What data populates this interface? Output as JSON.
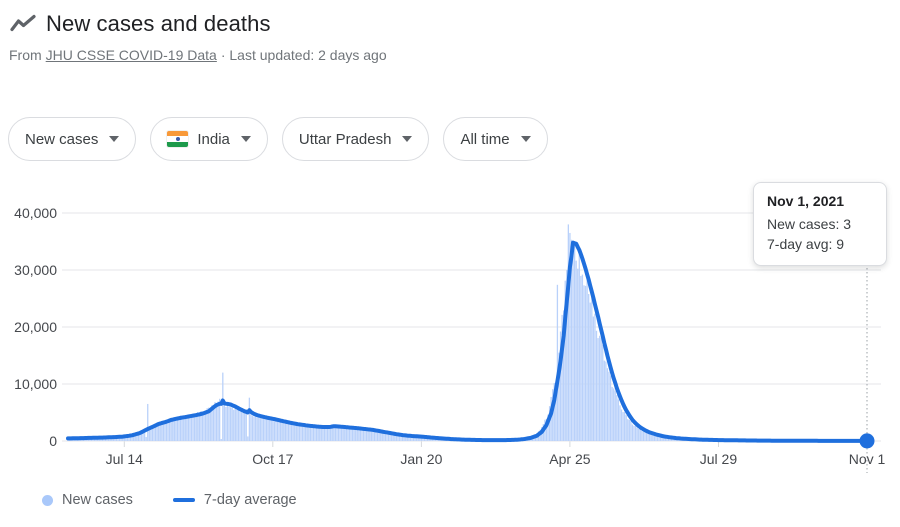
{
  "header": {
    "title": "New cases and deaths",
    "source_prefix": "From",
    "source_link": "JHU CSSE COVID-19 Data",
    "updated_suffix": "· Last updated: 2 days ago"
  },
  "filters": [
    {
      "label": "New cases"
    },
    {
      "label": "India",
      "flag": "india-flag"
    },
    {
      "label": "Uttar Pradesh"
    },
    {
      "label": "All time"
    }
  ],
  "tooltip": {
    "date": "Nov 1, 2021",
    "new_cases_label": "New cases: 3",
    "avg_label": "7-day avg: 9"
  },
  "colors": {
    "line_blue": "#1f6fdd",
    "area_blue": "#b9d1fa",
    "legend_dot_blue": "#a9c8fa",
    "grid": "#e4e6e9",
    "tick": "#d6d9dc",
    "guide": "#9aa0a6",
    "axis_text": "#45484d",
    "muted_text": "#70757a",
    "title_text": "#202124"
  },
  "chart_data": {
    "type": "area",
    "title": "New cases — Uttar Pradesh, India (All time)",
    "grid": true,
    "legend_position": "bottom",
    "legend": [
      {
        "label": "New cases",
        "swatch": "dot"
      },
      {
        "label": "7-day average",
        "swatch": "line"
      }
    ],
    "x_axis": {
      "start_date": "2020-06-08",
      "end_date": "2021-11-01",
      "total_days": 511,
      "ticks": [
        {
          "label": "Jul 14",
          "day": 36
        },
        {
          "label": "Oct 17",
          "day": 131
        },
        {
          "label": "Jan 20",
          "day": 226
        },
        {
          "label": "Apr 25",
          "day": 321
        },
        {
          "label": "Jul 29",
          "day": 416
        },
        {
          "label": "Nov 1",
          "day": 511
        }
      ]
    },
    "y_axis": {
      "ticks": [
        {
          "label": "0",
          "value": 0
        },
        {
          "label": "10,000",
          "value": 10000
        },
        {
          "label": "20,000",
          "value": 20000
        },
        {
          "label": "30,000",
          "value": 30000
        },
        {
          "label": "40,000",
          "value": 40000
        }
      ],
      "range": [
        0,
        43000
      ]
    },
    "series": [
      {
        "name": "New cases",
        "type": "bar",
        "color_key": "area_blue",
        "render_hint": "daily bars track the 7-day average led by 2 days with slight noise, plus the anomaly spikes below",
        "anomaly_points": {
          "50": 700,
          "51": 6500,
          "98": 350,
          "99": 12000,
          "115": 800,
          "116": 7600,
          "312": 9500,
          "313": 27400,
          "314": 15500,
          "319": 30000,
          "320": 38000,
          "321": 36500,
          "322": 35300,
          "323": 34200,
          "510": 4,
          "511": 3
        }
      },
      {
        "name": "7-day average",
        "type": "line",
        "color_key": "line_blue",
        "points": [
          [
            0,
            450
          ],
          [
            8,
            500
          ],
          [
            16,
            560
          ],
          [
            24,
            620
          ],
          [
            31,
            700
          ],
          [
            36,
            800
          ],
          [
            41,
            1000
          ],
          [
            46,
            1400
          ],
          [
            51,
            2100
          ],
          [
            55,
            2600
          ],
          [
            58,
            3000
          ],
          [
            62,
            3300
          ],
          [
            66,
            3700
          ],
          [
            70,
            3950
          ],
          [
            74,
            4150
          ],
          [
            78,
            4350
          ],
          [
            82,
            4550
          ],
          [
            86,
            4800
          ],
          [
            90,
            5200
          ],
          [
            93,
            5900
          ],
          [
            95,
            6300
          ],
          [
            97,
            6550
          ],
          [
            98,
            6500
          ],
          [
            99,
            7100
          ],
          [
            100,
            6600
          ],
          [
            102,
            6500
          ],
          [
            104,
            6400
          ],
          [
            107,
            6050
          ],
          [
            110,
            5600
          ],
          [
            113,
            5200
          ],
          [
            115,
            5000
          ],
          [
            116,
            5400
          ],
          [
            117,
            5100
          ],
          [
            119,
            4750
          ],
          [
            122,
            4450
          ],
          [
            125,
            4250
          ],
          [
            128,
            4050
          ],
          [
            131,
            3900
          ],
          [
            135,
            3650
          ],
          [
            139,
            3400
          ],
          [
            143,
            3150
          ],
          [
            147,
            2950
          ],
          [
            151,
            2800
          ],
          [
            155,
            2650
          ],
          [
            159,
            2550
          ],
          [
            163,
            2450
          ],
          [
            167,
            2450
          ],
          [
            170,
            2600
          ],
          [
            173,
            2550
          ],
          [
            177,
            2450
          ],
          [
            181,
            2350
          ],
          [
            185,
            2250
          ],
          [
            190,
            2100
          ],
          [
            195,
            1950
          ],
          [
            200,
            1700
          ],
          [
            205,
            1450
          ],
          [
            210,
            1200
          ],
          [
            215,
            1000
          ],
          [
            220,
            880
          ],
          [
            226,
            780
          ],
          [
            232,
            620
          ],
          [
            238,
            480
          ],
          [
            245,
            340
          ],
          [
            252,
            250
          ],
          [
            259,
            190
          ],
          [
            266,
            160
          ],
          [
            273,
            150
          ],
          [
            280,
            160
          ],
          [
            287,
            210
          ],
          [
            292,
            350
          ],
          [
            296,
            550
          ],
          [
            300,
            950
          ],
          [
            303,
            1600
          ],
          [
            306,
            2800
          ],
          [
            309,
            4900
          ],
          [
            311,
            7200
          ],
          [
            313,
            10500
          ],
          [
            315,
            14000
          ],
          [
            317,
            18500
          ],
          [
            319,
            24500
          ],
          [
            321,
            30500
          ],
          [
            322,
            32500
          ],
          [
            323,
            34800
          ],
          [
            325,
            34600
          ],
          [
            327,
            33500
          ],
          [
            329,
            32000
          ],
          [
            331,
            30200
          ],
          [
            333,
            28300
          ],
          [
            335,
            26200
          ],
          [
            337,
            24000
          ],
          [
            339,
            21800
          ],
          [
            341,
            19500
          ],
          [
            343,
            17200
          ],
          [
            345,
            15000
          ],
          [
            347,
            12900
          ],
          [
            349,
            11000
          ],
          [
            351,
            9300
          ],
          [
            353,
            7800
          ],
          [
            355,
            6500
          ],
          [
            357,
            5400
          ],
          [
            359,
            4500
          ],
          [
            361,
            3700
          ],
          [
            363,
            3100
          ],
          [
            366,
            2400
          ],
          [
            369,
            1900
          ],
          [
            372,
            1500
          ],
          [
            376,
            1150
          ],
          [
            380,
            880
          ],
          [
            384,
            680
          ],
          [
            388,
            540
          ],
          [
            393,
            420
          ],
          [
            398,
            330
          ],
          [
            404,
            250
          ],
          [
            410,
            200
          ],
          [
            417,
            160
          ],
          [
            424,
            130
          ],
          [
            432,
            100
          ],
          [
            440,
            80
          ],
          [
            450,
            60
          ],
          [
            460,
            45
          ],
          [
            470,
            35
          ],
          [
            480,
            26
          ],
          [
            490,
            19
          ],
          [
            500,
            13
          ],
          [
            511,
            9
          ]
        ]
      }
    ],
    "highlight": {
      "day": 511,
      "date": "Nov 1, 2021",
      "new_cases": 3,
      "seven_day_avg": 9
    }
  }
}
